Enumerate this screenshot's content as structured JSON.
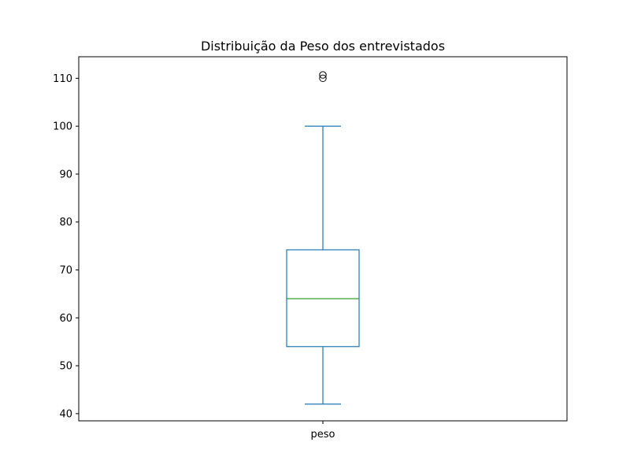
{
  "chart_data": {
    "type": "box",
    "title": "Distribuição da Peso dos entrevistados",
    "xlabel": "",
    "ylabel": "",
    "categories": [
      "peso"
    ],
    "ylim": [
      38.5,
      114.5
    ],
    "yticks": [
      40,
      50,
      60,
      70,
      80,
      90,
      100,
      110
    ],
    "boxes": [
      {
        "category": "peso",
        "whisker_low": 42,
        "q1": 54,
        "median": 64,
        "q3": 74.2,
        "whisker_high": 100,
        "outliers": [
          110,
          110.7
        ]
      }
    ],
    "grid": false,
    "colors": {
      "box": "#1f77b4",
      "median": "#2ca02c",
      "axis": "#000000"
    }
  }
}
